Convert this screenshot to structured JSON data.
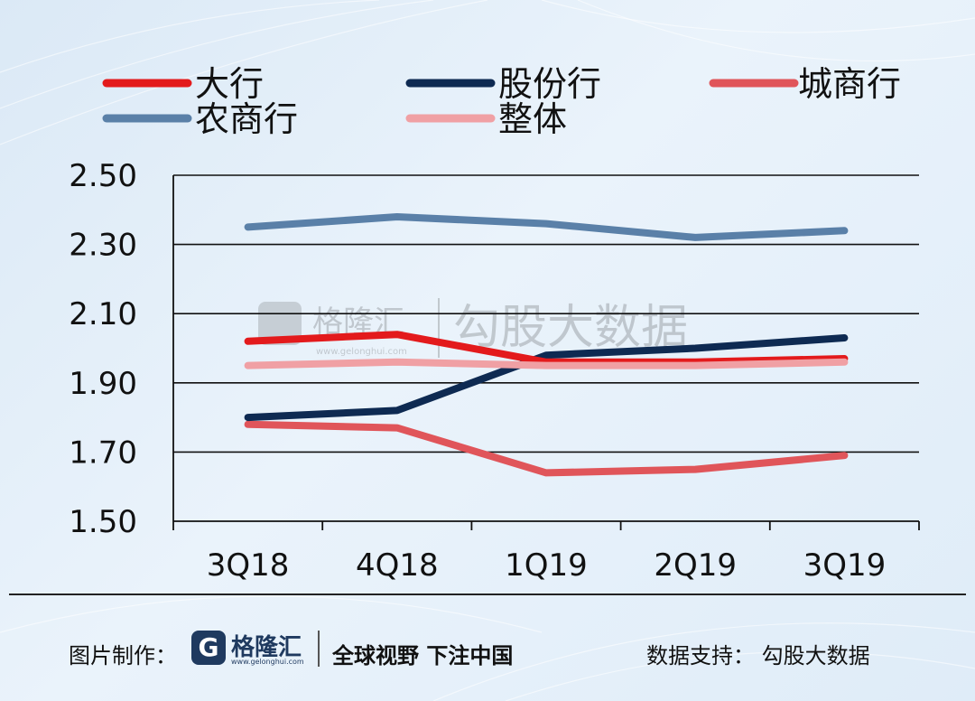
{
  "chart_data": {
    "type": "line",
    "categories": [
      "3Q18",
      "4Q18",
      "1Q19",
      "2Q19",
      "3Q19"
    ],
    "series": [
      {
        "name": "大行",
        "color": "#e31a1c",
        "values": [
          2.02,
          2.04,
          1.96,
          1.96,
          1.97
        ]
      },
      {
        "name": "股份行",
        "color": "#0e2a52",
        "values": [
          1.8,
          1.82,
          1.98,
          2.0,
          2.03
        ]
      },
      {
        "name": "城商行",
        "color": "#e0555a",
        "values": [
          1.78,
          1.77,
          1.64,
          1.65,
          1.69
        ]
      },
      {
        "name": "农商行",
        "color": "#5a80a8",
        "values": [
          2.35,
          2.38,
          2.36,
          2.32,
          2.34
        ]
      },
      {
        "name": "整体",
        "color": "#f0a0a4",
        "values": [
          1.95,
          1.96,
          1.95,
          1.95,
          1.96
        ]
      }
    ],
    "y_ticks": [
      "1.50",
      "1.70",
      "1.90",
      "2.10",
      "2.30",
      "2.50"
    ],
    "ylim": [
      1.5,
      2.5
    ],
    "grid": true,
    "legend_position": "top"
  },
  "watermark": {
    "logo_text": "格隆汇",
    "url": "www.gelonghui.com",
    "brand_text": "勾股大数据"
  },
  "footer": {
    "made_label": "图片制作：",
    "logo_glyph": "G",
    "logo_name": "格隆汇",
    "logo_url": "www.gelonghui.com",
    "slogan": "全球视野 下注中国",
    "source": "数据支持：  勾股大数据"
  }
}
